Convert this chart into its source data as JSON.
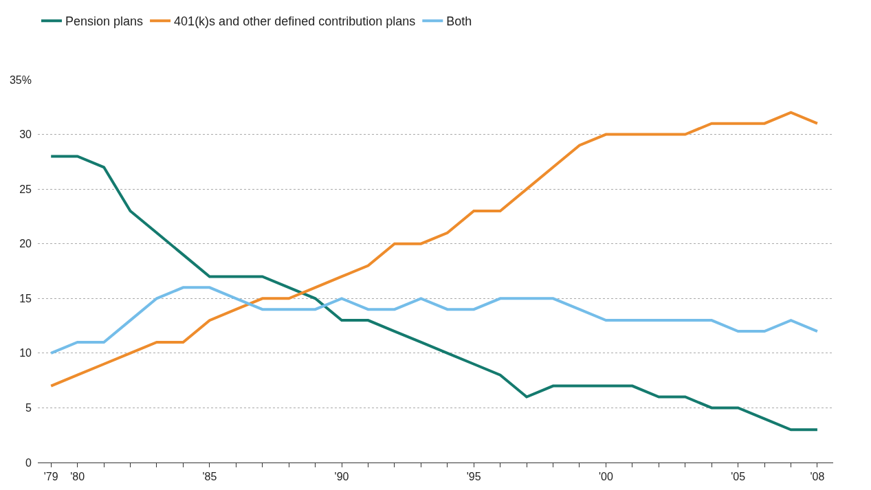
{
  "chart_data": {
    "type": "line",
    "x": [
      1979,
      1980,
      1981,
      1982,
      1983,
      1984,
      1985,
      1986,
      1987,
      1988,
      1989,
      1990,
      1991,
      1992,
      1993,
      1994,
      1995,
      1996,
      1997,
      1998,
      1999,
      2000,
      2001,
      2002,
      2003,
      2004,
      2005,
      2006,
      2007,
      2008
    ],
    "series": [
      {
        "name": "Pension plans",
        "color": "#147a6e",
        "values": [
          28,
          28,
          27,
          23,
          21,
          19,
          17,
          17,
          17,
          16,
          15,
          13,
          13,
          12,
          11,
          10,
          9,
          8,
          6,
          7,
          7,
          7,
          7,
          6,
          6,
          5,
          5,
          4,
          3,
          3
        ]
      },
      {
        "name": "401(k)s and other defined contribution plans",
        "color": "#ee8c2c",
        "values": [
          7,
          8,
          9,
          10,
          11,
          11,
          13,
          14,
          15,
          15,
          16,
          17,
          18,
          20,
          20,
          21,
          23,
          23,
          25,
          27,
          29,
          30,
          30,
          30,
          30,
          31,
          31,
          31,
          32,
          31
        ]
      },
      {
        "name": "Both",
        "color": "#74bde9",
        "values": [
          10,
          11,
          11,
          13,
          15,
          16,
          16,
          15,
          14,
          14,
          14,
          15,
          14,
          14,
          15,
          14,
          14,
          15,
          15,
          15,
          14,
          13,
          13,
          13,
          13,
          13,
          12,
          12,
          13,
          12
        ]
      }
    ],
    "xlim": [
      1978.5,
      2008.6
    ],
    "xticks": [
      {
        "value": 1979,
        "label": "'79"
      },
      {
        "value": 1980,
        "label": "'80"
      },
      {
        "value": 1981,
        "label": null
      },
      {
        "value": 1982,
        "label": null
      },
      {
        "value": 1983,
        "label": null
      },
      {
        "value": 1984,
        "label": null
      },
      {
        "value": 1985,
        "label": "'85"
      },
      {
        "value": 1986,
        "label": null
      },
      {
        "value": 1987,
        "label": null
      },
      {
        "value": 1988,
        "label": null
      },
      {
        "value": 1989,
        "label": null
      },
      {
        "value": 1990,
        "label": "'90"
      },
      {
        "value": 1991,
        "label": null
      },
      {
        "value": 1992,
        "label": null
      },
      {
        "value": 1993,
        "label": null
      },
      {
        "value": 1994,
        "label": null
      },
      {
        "value": 1995,
        "label": "'95"
      },
      {
        "value": 1996,
        "label": null
      },
      {
        "value": 1997,
        "label": null
      },
      {
        "value": 1998,
        "label": null
      },
      {
        "value": 1999,
        "label": null
      },
      {
        "value": 2000,
        "label": "'00"
      },
      {
        "value": 2001,
        "label": null
      },
      {
        "value": 2002,
        "label": null
      },
      {
        "value": 2003,
        "label": null
      },
      {
        "value": 2004,
        "label": null
      },
      {
        "value": 2005,
        "label": "'05"
      },
      {
        "value": 2006,
        "label": null
      },
      {
        "value": 2007,
        "label": null
      },
      {
        "value": 2008,
        "label": "'08"
      }
    ],
    "ylim": [
      0,
      35
    ],
    "yticks": [
      0,
      5,
      10,
      15,
      20,
      25,
      30,
      {
        "value": 35,
        "label": "35%"
      }
    ],
    "grid": "y",
    "legend": "top left",
    "marker": "none",
    "line_style": "solid"
  }
}
